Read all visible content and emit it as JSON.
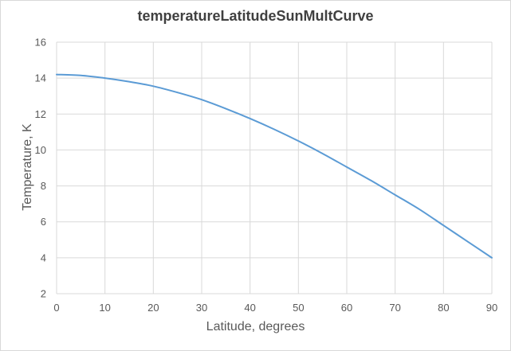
{
  "chart_data": {
    "type": "line",
    "title": "temperatureLatitudeSunMultCurve",
    "xlabel": "Latitude, degrees",
    "ylabel": "Temperature, K",
    "xlim": [
      0,
      90
    ],
    "ylim": [
      2,
      16
    ],
    "x_ticks": [
      0,
      10,
      20,
      30,
      40,
      50,
      60,
      70,
      80,
      90
    ],
    "y_ticks": [
      2,
      4,
      6,
      8,
      10,
      12,
      14,
      16
    ],
    "grid": true,
    "legend": "none",
    "series": [
      {
        "color": "#5b9bd5",
        "x": [
          0,
          5,
          10,
          15,
          20,
          25,
          30,
          35,
          40,
          45,
          50,
          55,
          60,
          65,
          70,
          75,
          80,
          85,
          90
        ],
        "y": [
          14.2,
          14.15,
          14.0,
          13.8,
          13.55,
          13.2,
          12.8,
          12.3,
          11.75,
          11.15,
          10.5,
          9.8,
          9.05,
          8.3,
          7.5,
          6.7,
          5.8,
          4.9,
          4.0
        ]
      }
    ]
  }
}
